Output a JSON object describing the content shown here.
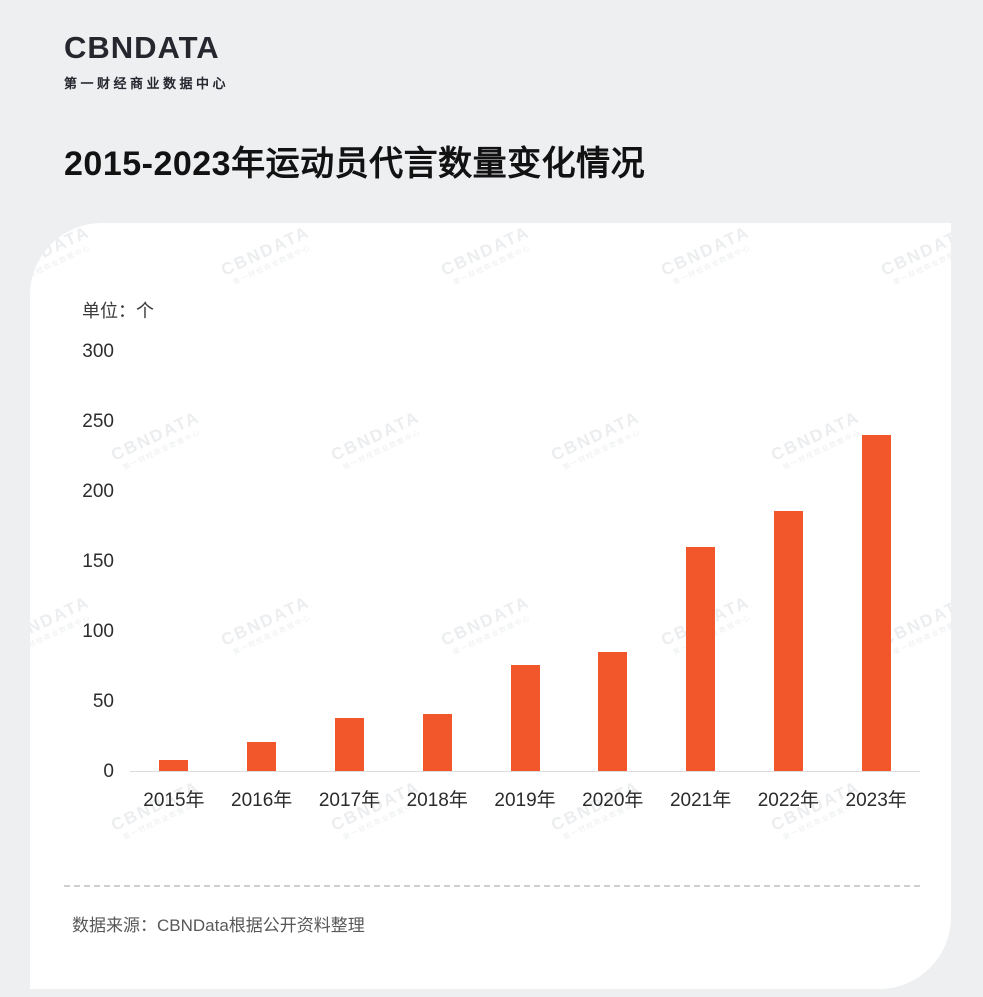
{
  "logo": {
    "brand": "CBNDATA",
    "subtitle": "第一财经商业数据中心"
  },
  "page_title": "2015-2023年运动员代言数量变化情况",
  "chart_data": {
    "type": "bar",
    "title": "2015-2023年运动员代言数量变化情况",
    "unit_label": "单位：个",
    "categories": [
      "2015年",
      "2016年",
      "2017年",
      "2018年",
      "2019年",
      "2020年",
      "2021年",
      "2022年",
      "2023年"
    ],
    "values": [
      8,
      21,
      38,
      41,
      76,
      85,
      160,
      186,
      240
    ],
    "ylim": [
      0,
      300
    ],
    "yticks": [
      300,
      250,
      200,
      150,
      100,
      50,
      0
    ],
    "grid": false,
    "legend": "none",
    "bar_color": "#f1572b"
  },
  "source_note": "数据来源：CBNData根据公开资料整理",
  "watermark": {
    "brand": "CBNDATA",
    "subtitle": "第一财经商业数据中心"
  },
  "colors": {
    "accent": "#f1572b",
    "background": "#edeff1",
    "card": "#ffffff",
    "text": "#121212"
  }
}
